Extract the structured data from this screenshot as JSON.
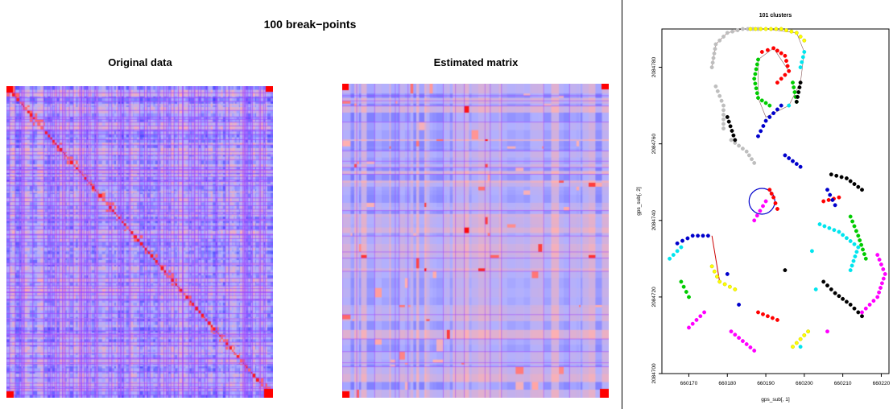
{
  "main_title": "100 break−points",
  "colors": {
    "heat_low": "#4040ff",
    "heat_mid": "#b0b0ff",
    "heat_high": "#ffb0b0",
    "heat_peak": "#ff0000",
    "line_purple": "#a040ff"
  },
  "chart_data": [
    {
      "type": "heatmap",
      "title": "Original data",
      "xlabel": "",
      "ylabel": "",
      "palette": [
        "#4040ff",
        "#b0b0ff",
        "#ffb0b0",
        "#ff0000"
      ],
      "structure": "similarity matrix with bright diagonal and block-wise stripes"
    },
    {
      "type": "heatmap",
      "title": "Estimated matrix",
      "xlabel": "",
      "ylabel": "",
      "palette": [
        "#4040ff",
        "#b0b0ff",
        "#ffb0b0",
        "#ff0000"
      ],
      "structure": "piecewise-constant block matrix estimated from 100 break-points"
    },
    {
      "type": "scatter",
      "title": "101 clusters",
      "xlabel": "gps_sub[, 1]",
      "ylabel": "gps_sub[, 2]",
      "xlim": [
        660163,
        660222
      ],
      "ylim": [
        2084700,
        2084790
      ],
      "xticks": [
        "660170",
        "660180",
        "660190",
        "660200",
        "660210",
        "660220"
      ],
      "yticks": [
        "2084700",
        "2084720",
        "2084740",
        "2084760",
        "2084780"
      ],
      "cluster_colors": [
        "#ff0000",
        "#00cc00",
        "#0000cc",
        "#00e5ee",
        "#ff00ff",
        "#ffff00",
        "#000000",
        "#bebebe"
      ],
      "series": [
        {
          "color": "#bebebe",
          "points": [
            [
              660176,
              2084780
            ],
            [
              660177,
              2084786
            ],
            [
              660180,
              2084789
            ],
            [
              660184,
              2084790
            ],
            [
              660188,
              2084790
            ],
            [
              660179,
              2084764
            ],
            [
              660179,
              2084770
            ],
            [
              660177,
              2084775
            ],
            [
              660181,
              2084761
            ],
            [
              660185,
              2084758
            ],
            [
              660187,
              2084755
            ]
          ]
        },
        {
          "color": "#ffff00",
          "points": [
            [
              660186,
              2084790
            ],
            [
              660190,
              2084790
            ],
            [
              660194,
              2084790
            ],
            [
              660198,
              2084789
            ],
            [
              660200,
              2084787
            ],
            [
              660176,
              2084728
            ],
            [
              660178,
              2084724
            ],
            [
              660182,
              2084722
            ],
            [
              660197,
              2084707
            ],
            [
              660201,
              2084711
            ]
          ]
        },
        {
          "color": "#ff0000",
          "points": [
            [
              660189,
              2084784
            ],
            [
              660192,
              2084785
            ],
            [
              660195,
              2084783
            ],
            [
              660196,
              2084779
            ],
            [
              660193,
              2084776
            ],
            [
              660191,
              2084748
            ],
            [
              660192,
              2084746
            ],
            [
              660193,
              2084743
            ],
            [
              660205,
              2084745
            ],
            [
              660209,
              2084746
            ],
            [
              660188,
              2084716
            ],
            [
              660193,
              2084714
            ]
          ]
        },
        {
          "color": "#00cc00",
          "points": [
            [
              660188,
              2084782
            ],
            [
              660187,
              2084777
            ],
            [
              660188,
              2084772
            ],
            [
              660191,
              2084770
            ],
            [
              660197,
              2084776
            ],
            [
              660198,
              2084771
            ],
            [
              660212,
              2084741
            ],
            [
              660214,
              2084736
            ],
            [
              660216,
              2084730
            ],
            [
              660168,
              2084724
            ],
            [
              660170,
              2084720
            ]
          ]
        },
        {
          "color": "#00e5ee",
          "points": [
            [
              660200,
              2084784
            ],
            [
              660199,
              2084780
            ],
            [
              660196,
              2084770
            ],
            [
              660204,
              2084739
            ],
            [
              660209,
              2084737
            ],
            [
              660214,
              2084733
            ],
            [
              660212,
              2084727
            ],
            [
              660203,
              2084722
            ],
            [
              660202,
              2084732
            ],
            [
              660199,
              2084707
            ],
            [
              660165,
              2084730
            ],
            [
              660168,
              2084733
            ]
          ]
        },
        {
          "color": "#0000cc",
          "points": [
            [
              660194,
              2084770
            ],
            [
              660190,
              2084766
            ],
            [
              660188,
              2084762
            ],
            [
              660195,
              2084757
            ],
            [
              660199,
              2084754
            ],
            [
              660206,
              2084748
            ],
            [
              660208,
              2084744
            ],
            [
              660175,
              2084736
            ],
            [
              660171,
              2084736
            ],
            [
              660167,
              2084734
            ],
            [
              660180,
              2084726
            ],
            [
              660183,
              2084718
            ]
          ]
        },
        {
          "color": "#000000",
          "points": [
            [
              660199,
              2084776
            ],
            [
              660198,
              2084771
            ],
            [
              660180,
              2084767
            ],
            [
              660182,
              2084761
            ],
            [
              660207,
              2084752
            ],
            [
              660211,
              2084751
            ],
            [
              660215,
              2084748
            ],
            [
              660205,
              2084724
            ],
            [
              660208,
              2084721
            ],
            [
              660212,
              2084718
            ],
            [
              660215,
              2084715
            ],
            [
              660195,
              2084727
            ]
          ]
        },
        {
          "color": "#ff00ff",
          "points": [
            [
              660219,
              2084731
            ],
            [
              660221,
              2084726
            ],
            [
              660219,
              2084720
            ],
            [
              660215,
              2084716
            ],
            [
              660206,
              2084711
            ],
            [
              660187,
              2084706
            ],
            [
              660181,
              2084711
            ],
            [
              660174,
              2084716
            ],
            [
              660170,
              2084712
            ],
            [
              660190,
              2084745
            ],
            [
              660187,
              2084740
            ]
          ]
        }
      ]
    }
  ]
}
